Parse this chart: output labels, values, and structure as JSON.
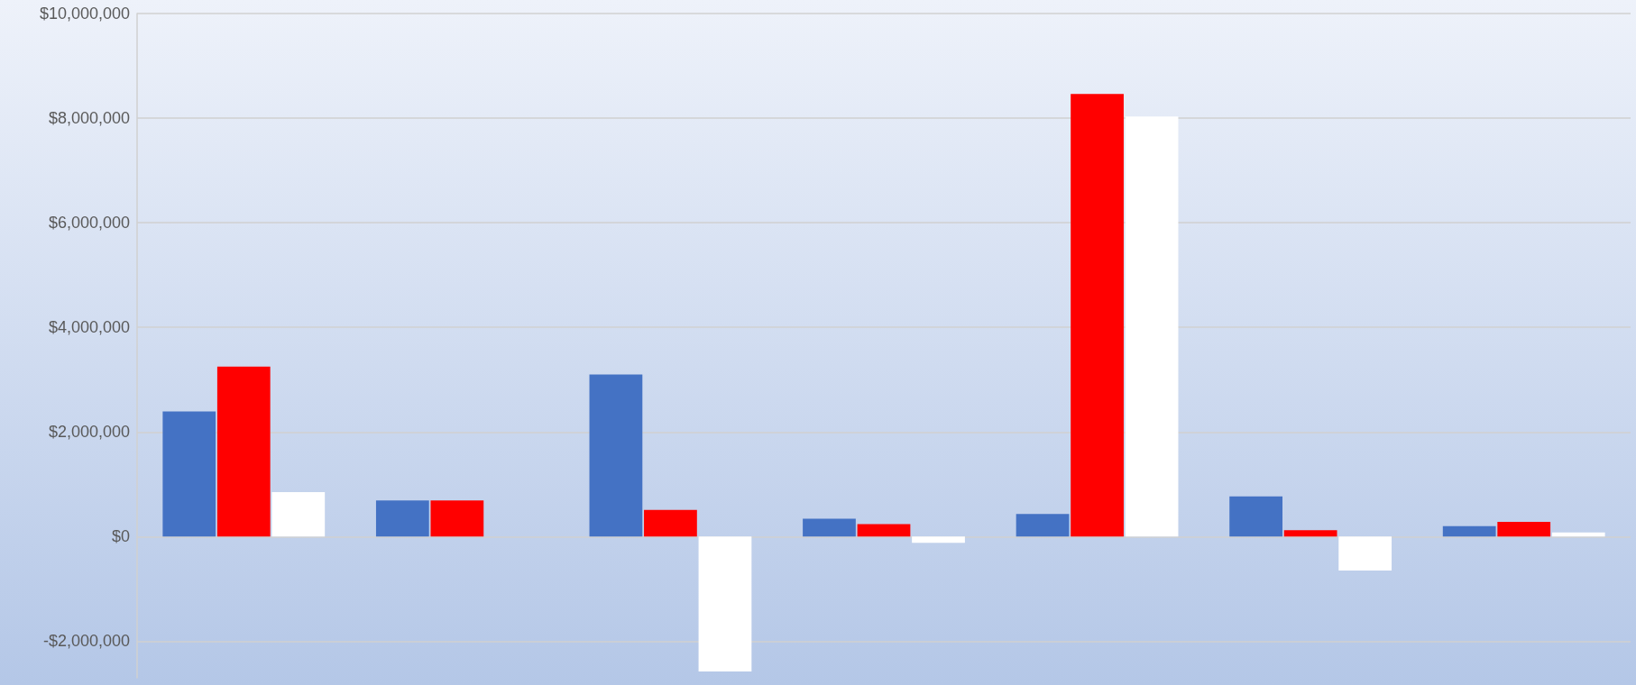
{
  "chart_data": {
    "type": "bar",
    "categories": [
      null,
      null,
      null,
      null,
      null,
      null,
      null
    ],
    "series": [
      {
        "color": "#4472c4",
        "values": [
          2390000,
          690000,
          3100000,
          340000,
          430000,
          770000,
          200000
        ]
      },
      {
        "color": "#ff0000",
        "values": [
          3250000,
          690000,
          510000,
          240000,
          8460000,
          120000,
          280000
        ]
      },
      {
        "color": "#ffffff",
        "values": [
          850000,
          0,
          -2580000,
          -120000,
          8030000,
          -650000,
          80000
        ]
      }
    ],
    "ylim": [
      -2700000,
      10000000
    ],
    "yticks": [
      {
        "value": -2000000,
        "label": "-$2,000,000"
      },
      {
        "value": 0,
        "label": "$0"
      },
      {
        "value": 2000000,
        "label": "$2,000,000"
      },
      {
        "value": 4000000,
        "label": "$4,000,000"
      },
      {
        "value": 6000000,
        "label": "$6,000,000"
      },
      {
        "value": 8000000,
        "label": "$8,000,000"
      },
      {
        "value": 10000000,
        "label": "$10,000,000"
      }
    ],
    "grid": "y"
  }
}
